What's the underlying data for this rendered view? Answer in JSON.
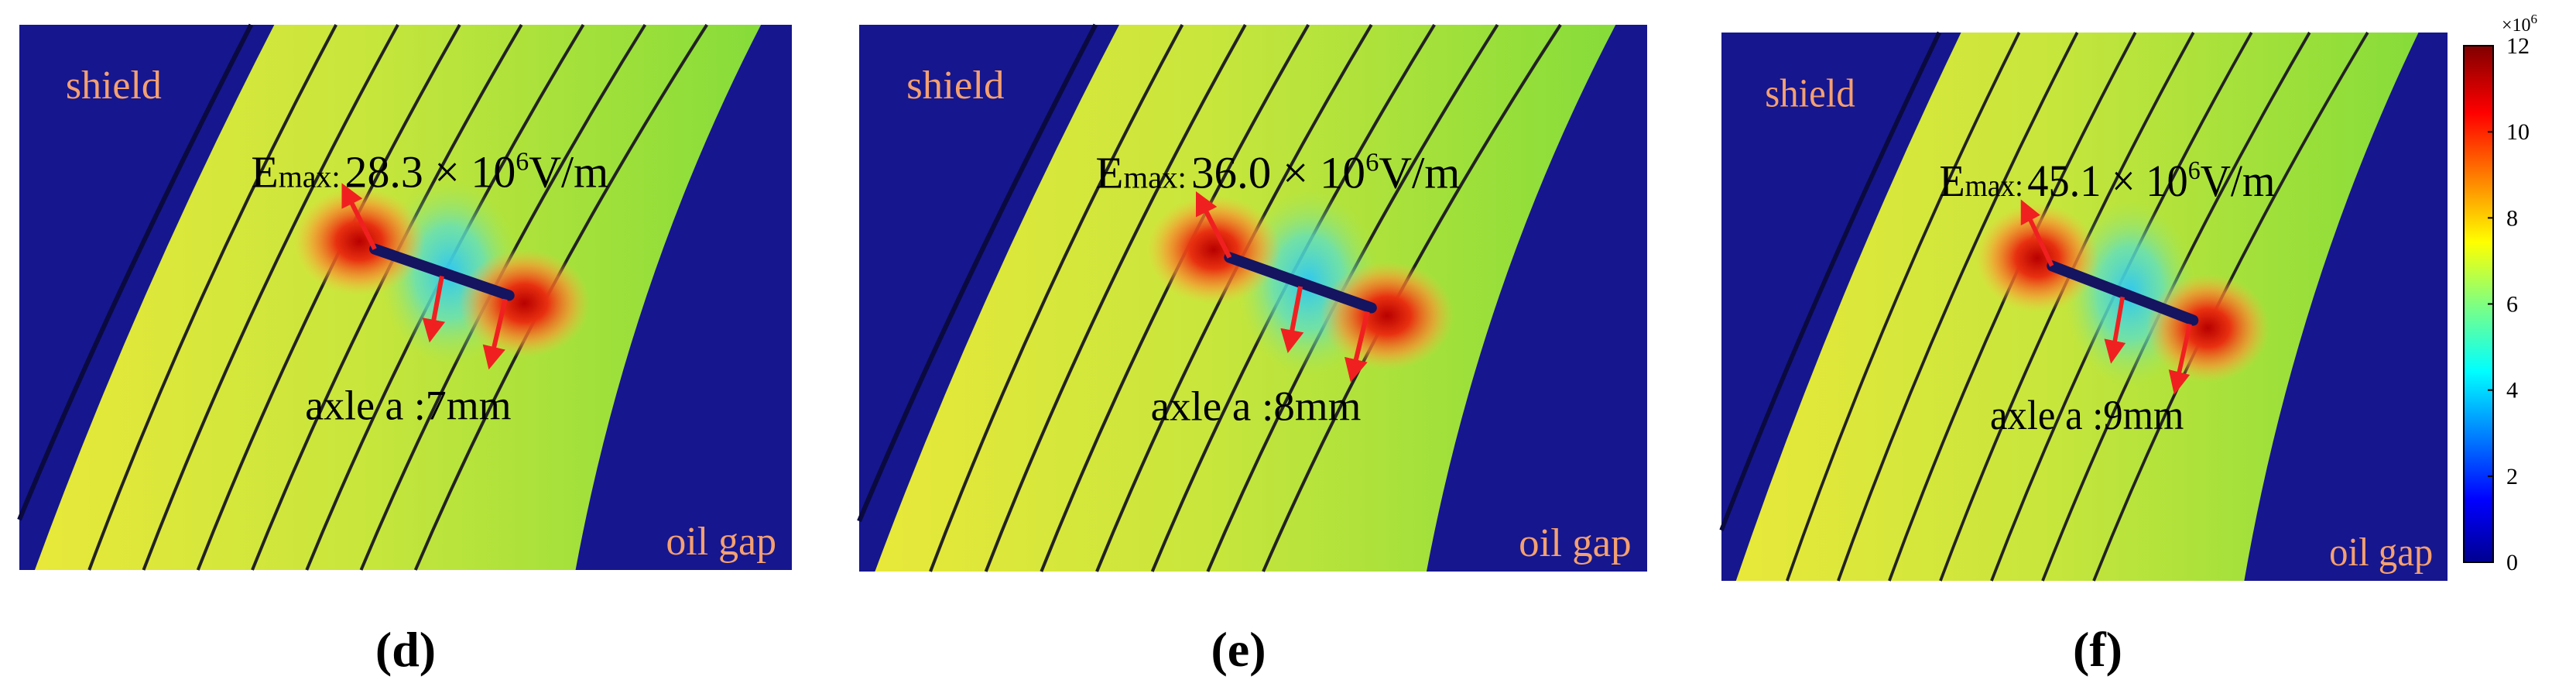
{
  "panels": [
    {
      "label": "(d)",
      "shield": "shield",
      "oil_gap": "oil gap",
      "emax": {
        "symbol": "E",
        "subscript": "max:",
        "value": "28.3 × 10",
        "exponent": "6",
        "unit": "V/m"
      },
      "axle": "axle a :7mm"
    },
    {
      "label": "(e)",
      "shield": "shield",
      "oil_gap": "oil gap",
      "emax": {
        "symbol": "E",
        "subscript": "max:",
        "value": "36.0 × 10",
        "exponent": "6",
        "unit": "V/m"
      },
      "axle": "axle a :8mm"
    },
    {
      "label": "(f)",
      "shield": "shield",
      "oil_gap": "oil gap",
      "emax": {
        "symbol": "E",
        "subscript": "max:",
        "value": "45.1 × 10",
        "exponent": "6",
        "unit": "V/m"
      },
      "axle": "axle a :9mm"
    }
  ],
  "colorbar": {
    "multiplier": "×10",
    "exponent": "6",
    "ticks": [
      0,
      2,
      4,
      6,
      8,
      10,
      12
    ]
  }
}
